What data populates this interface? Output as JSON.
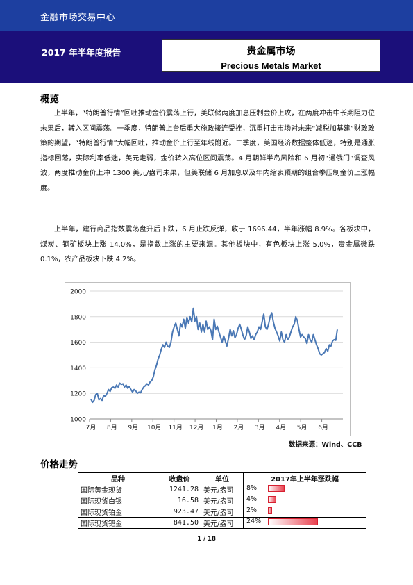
{
  "header": {
    "org": "金融市场交易中心",
    "period": "2017 年半年度报告",
    "title_cn": "贵金属市场",
    "title_en": "Precious Metals Market"
  },
  "overview": {
    "heading": "概览",
    "paragraphs": [
      "上半年，“特朗普行情”回吐推动金价震荡上行，美联储两度加息压制金价上攻，在两度冲击中长期阻力位未果后，转入区间震荡。一季度，特朗普上台后重大施政接连受挫，沉重打击市场对未来“减税加基建”财政政策的期望，“特朗普行情”大幅回吐，推动金价上行至年线附近。二季度，美国经济数据整体低迷，特别是通胀指标回落，实际利率低迷，美元走弱，金价转入高位区间震荡。4 月朝鲜半岛风险和 6 月初“通俄门”调查风波，两度推动金价上冲 1300 美元/盎司未果，但美联储 6 月加息以及年内缩表预期的组合拳压制金价上涨幅度。",
      "上半年，建行商品指数震荡盘升后下跌，6 月止跌反弹，收于 1696.44，半年涨幅 8.9%。各板块中，煤炭、钢矿板块上涨 14.0%，是指数上涨的主要来源。其他板块中，有色板块上涨 5.0%，贵金属微跌 0.1%，农产品板块下跌 4.2%。"
    ]
  },
  "chart_data": {
    "type": "line",
    "x_labels": [
      "7月",
      "8月",
      "9月",
      "10月",
      "11月",
      "12月",
      "1月",
      "2月",
      "3月",
      "4月",
      "5月",
      "6月"
    ],
    "ylim": [
      1000,
      2000
    ],
    "y_ticks": [
      1000,
      1200,
      1400,
      1600,
      1800,
      2000
    ],
    "grid": true,
    "series": [
      {
        "color": "#4a78b5",
        "values": [
          1155,
          1130,
          1145,
          1190,
          1200,
          1150,
          1160,
          1145,
          1185,
          1175,
          1200,
          1230,
          1215,
          1245,
          1250,
          1240,
          1265,
          1250,
          1280,
          1270,
          1275,
          1250,
          1265,
          1240,
          1255,
          1230,
          1210,
          1230,
          1220,
          1200,
          1210,
          1205,
          1230,
          1250,
          1260,
          1275,
          1265,
          1290,
          1300,
          1330,
          1385,
          1420,
          1470,
          1500,
          1545,
          1580,
          1560,
          1600,
          1570,
          1560,
          1600,
          1680,
          1720,
          1750,
          1700,
          1650,
          1745,
          1720,
          1780,
          1710,
          1795,
          1750,
          1800,
          1760,
          1865,
          1765,
          1800,
          1700,
          1750,
          1680,
          1740,
          1680,
          1765,
          1700,
          1720,
          1690,
          1620,
          1780,
          1700,
          1725,
          1680,
          1640,
          1600,
          1650,
          1610,
          1570,
          1630,
          1700,
          1650,
          1690,
          1635,
          1660,
          1710,
          1740,
          1700,
          1655,
          1620,
          1650,
          1720,
          1680,
          1630,
          1650,
          1620,
          1660,
          1680,
          1720,
          1700,
          1760,
          1820,
          1720,
          1700,
          1740,
          1800,
          1830,
          1760,
          1710,
          1680,
          1650,
          1610,
          1680,
          1620,
          1600,
          1660,
          1620,
          1640,
          1680,
          1720,
          1740,
          1800,
          1770,
          1700,
          1640,
          1660,
          1640,
          1630,
          1590,
          1660,
          1620,
          1600,
          1660,
          1620,
          1580,
          1550,
          1510,
          1500,
          1510,
          1520,
          1550,
          1530,
          1580,
          1570,
          1610,
          1620,
          1615,
          1700
        ]
      }
    ]
  },
  "source": "数据来源：Wind、CCB",
  "prices": {
    "heading": "价格走势",
    "columns": [
      "品种",
      "收盘价",
      "单位",
      "2017年上半年涨跌幅"
    ],
    "rows": [
      {
        "name": "国际黄金现货",
        "close": "1241.28",
        "unit": "美元/盎司",
        "change": "8%",
        "change_value": 8
      },
      {
        "name": "国际现货白银",
        "close": "16.58",
        "unit": "美元/盎司",
        "change": "4%",
        "change_value": 4
      },
      {
        "name": "国际现货铂金",
        "close": "923.47",
        "unit": "美元/盎司",
        "change": "2%",
        "change_value": 2
      },
      {
        "name": "国际现货钯金",
        "close": "841.50",
        "unit": "美元/盎司",
        "change": "24%",
        "change_value": 24
      }
    ]
  },
  "page": "1 / 18"
}
